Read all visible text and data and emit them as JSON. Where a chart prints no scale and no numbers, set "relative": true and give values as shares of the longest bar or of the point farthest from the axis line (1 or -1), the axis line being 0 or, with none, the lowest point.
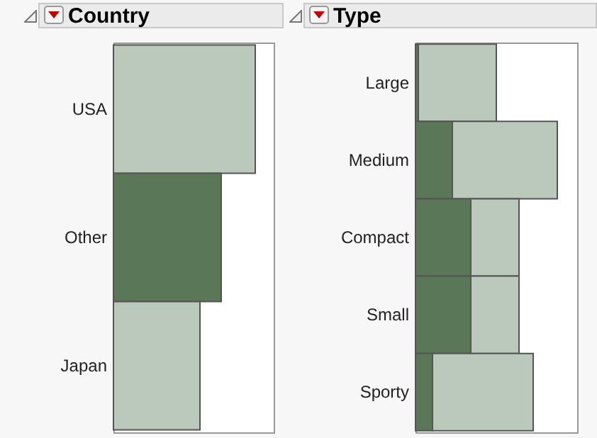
{
  "chart_data": [
    {
      "type": "bar",
      "title": "Country",
      "orientation": "horizontal",
      "stacked": true,
      "relative": true,
      "categories": [
        "USA",
        "Other",
        "Japan"
      ],
      "series": [
        {
          "color": "#5a7858",
          "values": [
            0,
            0.76,
            0
          ]
        },
        {
          "color": "#bac9bb",
          "values": [
            1,
            0,
            0.61
          ]
        }
      ]
    },
    {
      "type": "bar",
      "title": "Type",
      "orientation": "horizontal",
      "stacked": true,
      "relative": true,
      "categories": [
        "Large",
        "Medium",
        "Compact",
        "Small",
        "Sporty"
      ],
      "series": [
        {
          "color": "#5a7858",
          "values": [
            0.02,
            0.26,
            0.39,
            0.39,
            0.12
          ]
        },
        {
          "color": "#bac9bb",
          "values": [
            0.55,
            0.74,
            0.34,
            0.34,
            0.71
          ]
        }
      ]
    }
  ]
}
